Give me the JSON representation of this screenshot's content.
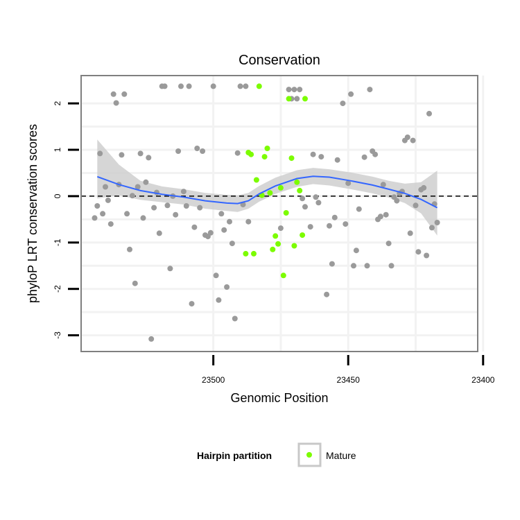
{
  "chart_data": {
    "type": "scatter",
    "title": "Conservation",
    "xlabel": "Genomic Position",
    "ylabel": "phyloP LRT conservation scores",
    "x_reversed": true,
    "xlim": [
      23549,
      23402
    ],
    "ylim": [
      -3.35,
      2.6
    ],
    "xticks": [
      23500,
      23450,
      23400
    ],
    "yticks": [
      2,
      1,
      0,
      -1,
      -2,
      -3
    ],
    "grid": true,
    "reference_line": {
      "y": 0,
      "style": "dashed",
      "color": "#000000"
    },
    "legend": {
      "title": "Hairpin partition",
      "placement": "bottom",
      "entries": [
        "Mature"
      ]
    },
    "colors": {
      "points": "#9a9a9a",
      "mature": "#7cfc00",
      "smooth": "#3366ff",
      "ribbon": "#cfcfcf",
      "panel_border": "#7f7f7f",
      "grid": "#f2f2f2"
    },
    "series": [
      {
        "name": "",
        "color": "#9a9a9a",
        "points": [
          [
            23544,
            -0.47
          ],
          [
            23543,
            -0.21
          ],
          [
            23542,
            0.92
          ],
          [
            23541,
            -0.38
          ],
          [
            23540,
            0.2
          ],
          [
            23539,
            -0.09
          ],
          [
            23538,
            -0.6
          ],
          [
            23537,
            2.2
          ],
          [
            23536,
            2.01
          ],
          [
            23535,
            0.25
          ],
          [
            23534,
            0.89
          ],
          [
            23533,
            2.2
          ],
          [
            23532,
            -0.38
          ],
          [
            23531,
            -1.15
          ],
          [
            23530,
            0.01
          ],
          [
            23529,
            -1.88
          ],
          [
            23528,
            0.2
          ],
          [
            23527,
            0.92
          ],
          [
            23526,
            -0.47
          ],
          [
            23525,
            0.3
          ],
          [
            23524,
            0.83
          ],
          [
            23523,
            -3.08
          ],
          [
            23522,
            -0.25
          ],
          [
            23521,
            0.08
          ],
          [
            23520,
            -0.8
          ],
          [
            23519,
            2.37
          ],
          [
            23518,
            2.37
          ],
          [
            23517,
            -0.2
          ],
          [
            23516,
            -1.56
          ],
          [
            23515,
            0.0
          ],
          [
            23514,
            -0.4
          ],
          [
            23513,
            0.97
          ],
          [
            23512,
            2.37
          ],
          [
            23511,
            0.1
          ],
          [
            23510,
            -0.21
          ],
          [
            23509,
            2.37
          ],
          [
            23508,
            -2.32
          ],
          [
            23507,
            -0.67
          ],
          [
            23506,
            1.03
          ],
          [
            23505,
            -0.25
          ],
          [
            23504,
            0.97
          ],
          [
            23503,
            -0.84
          ],
          [
            23502,
            -0.87
          ],
          [
            23501,
            -0.79
          ],
          [
            23500,
            2.37
          ],
          [
            23499,
            -1.71
          ],
          [
            23498,
            -2.24
          ],
          [
            23497,
            -0.38
          ],
          [
            23496,
            -0.73
          ],
          [
            23495,
            -1.96
          ],
          [
            23494,
            -0.55
          ],
          [
            23493,
            -1.02
          ],
          [
            23492,
            -2.64
          ],
          [
            23491,
            0.93
          ],
          [
            23490,
            2.37
          ],
          [
            23489,
            -0.18
          ],
          [
            23488,
            2.37
          ],
          [
            23487,
            -0.55
          ],
          [
            23475,
            -0.69
          ],
          [
            23472,
            2.3
          ],
          [
            23471,
            2.1
          ],
          [
            23470,
            2.3
          ],
          [
            23469,
            2.1
          ],
          [
            23468,
            2.3
          ],
          [
            23467,
            -0.05
          ],
          [
            23466,
            -0.23
          ],
          [
            23464,
            -0.66
          ],
          [
            23463,
            0.9
          ],
          [
            23462,
            -0.02
          ],
          [
            23461,
            -0.14
          ],
          [
            23460,
            0.85
          ],
          [
            23458,
            -2.12
          ],
          [
            23457,
            -0.64
          ],
          [
            23456,
            -1.46
          ],
          [
            23455,
            -0.46
          ],
          [
            23454,
            0.78
          ],
          [
            23452,
            2.0
          ],
          [
            23451,
            -0.6
          ],
          [
            23450,
            0.28
          ],
          [
            23449,
            2.2
          ],
          [
            23448,
            -1.5
          ],
          [
            23447,
            -1.17
          ],
          [
            23446,
            -0.28
          ],
          [
            23444,
            0.84
          ],
          [
            23443,
            -1.5
          ],
          [
            23442,
            2.3
          ],
          [
            23441,
            0.97
          ],
          [
            23440,
            0.9
          ],
          [
            23439,
            -0.5
          ],
          [
            23438,
            -0.44
          ],
          [
            23437,
            0.25
          ],
          [
            23436,
            -0.4
          ],
          [
            23435,
            -1.02
          ],
          [
            23434,
            -1.5
          ],
          [
            23433,
            -0.02
          ],
          [
            23432,
            -0.1
          ],
          [
            23431,
            0.06
          ],
          [
            23430,
            0.1
          ],
          [
            23429,
            1.2
          ],
          [
            23428,
            1.27
          ],
          [
            23427,
            -0.8
          ],
          [
            23426,
            1.2
          ],
          [
            23425,
            -0.2
          ],
          [
            23424,
            -1.2
          ],
          [
            23423,
            0.14
          ],
          [
            23422,
            0.18
          ],
          [
            23421,
            -1.28
          ],
          [
            23420,
            1.78
          ],
          [
            23419,
            -0.68
          ],
          [
            23418,
            -0.17
          ],
          [
            23417,
            -0.57
          ]
        ]
      },
      {
        "name": "Mature",
        "color": "#7cfc00",
        "points": [
          [
            23488,
            -1.24
          ],
          [
            23487,
            0.94
          ],
          [
            23486,
            0.9
          ],
          [
            23485,
            -1.24
          ],
          [
            23484,
            0.35
          ],
          [
            23483,
            2.37
          ],
          [
            23482,
            0.02
          ],
          [
            23481,
            0.85
          ],
          [
            23480,
            1.03
          ],
          [
            23479,
            0.07
          ],
          [
            23478,
            -1.15
          ],
          [
            23477,
            -0.86
          ],
          [
            23476,
            -1.03
          ],
          [
            23475,
            0.18
          ],
          [
            23474,
            -1.71
          ],
          [
            23473,
            -0.36
          ],
          [
            23472,
            2.1
          ],
          [
            23471,
            0.82
          ],
          [
            23470,
            -1.07
          ],
          [
            23469,
            0.3
          ],
          [
            23468,
            0.12
          ],
          [
            23467,
            -0.84
          ],
          [
            23466,
            2.1
          ]
        ]
      }
    ],
    "smooth": {
      "name": "loess fit",
      "color": "#3366ff",
      "points": [
        [
          23543,
          0.42,
          -0.05,
          1.22
        ],
        [
          23535,
          0.25,
          0.02,
          0.68
        ],
        [
          23527,
          0.12,
          -0.08,
          0.33
        ],
        [
          23519,
          0.04,
          -0.13,
          0.21
        ],
        [
          23511,
          -0.02,
          -0.18,
          0.15
        ],
        [
          23503,
          -0.1,
          -0.27,
          0.07
        ],
        [
          23495,
          -0.15,
          -0.32,
          0.03
        ],
        [
          23491,
          -0.16,
          -0.34,
          0.02
        ],
        [
          23487,
          -0.1,
          -0.27,
          0.07
        ],
        [
          23483,
          0.05,
          -0.12,
          0.22
        ],
        [
          23477,
          0.22,
          0.05,
          0.4
        ],
        [
          23469,
          0.38,
          0.2,
          0.56
        ],
        [
          23463,
          0.43,
          0.26,
          0.61
        ],
        [
          23457,
          0.41,
          0.23,
          0.58
        ],
        [
          23449,
          0.33,
          0.15,
          0.51
        ],
        [
          23441,
          0.24,
          0.06,
          0.42
        ],
        [
          23435,
          0.15,
          -0.03,
          0.33
        ],
        [
          23429,
          0.06,
          -0.15,
          0.27
        ],
        [
          23423,
          -0.07,
          -0.37,
          0.3
        ],
        [
          23417,
          -0.25,
          -0.85,
          0.55
        ]
      ]
    }
  }
}
